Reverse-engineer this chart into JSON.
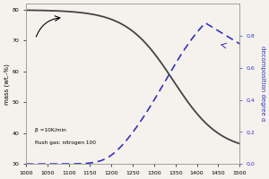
{
  "title": "",
  "xlabel": "",
  "ylabel_left": "mass (wt.-%)",
  "ylabel_right": "decomposition degree α",
  "xlim": [
    1000,
    1500
  ],
  "ylim_left": [
    30,
    82
  ],
  "ylim_right": [
    0.0,
    1.0
  ],
  "yticks_left": [
    30,
    40,
    50,
    60,
    70,
    80
  ],
  "yticks_right": [
    0.0,
    0.2,
    0.4,
    0.6,
    0.8
  ],
  "xticks": [
    1000,
    1050,
    1100,
    1150,
    1200,
    1250,
    1300,
    1350,
    1400,
    1450,
    1500
  ],
  "yticklabels_right": [
    "0,0",
    "0,2",
    "0,4",
    "0,6",
    "0,8"
  ],
  "annotation_text1": "β =10K/min",
  "annotation_text2": "flush gas: nitrogen 100",
  "line_color": "#444444",
  "dashed_color": "#3333bb",
  "background_color": "#f5f2ee"
}
